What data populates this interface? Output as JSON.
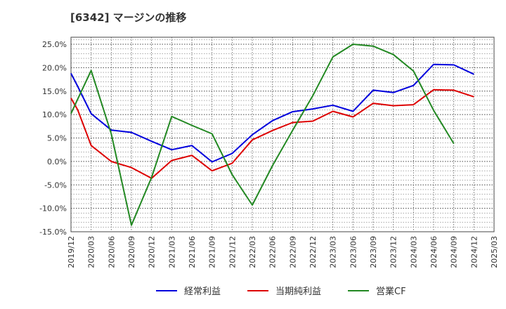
{
  "chart_data": {
    "type": "line",
    "title": "[6342]  マージンの推移",
    "xlabel": "",
    "ylabel": "",
    "ylim": [
      -15,
      26.5
    ],
    "yticks": [
      25,
      20,
      15,
      10,
      5,
      0,
      -5,
      -10,
      -15
    ],
    "ytick_labels": [
      "25.0%",
      "20.0%",
      "15.0%",
      "10.0%",
      "5.0%",
      "0.0%",
      "-5.0%",
      "-10.0%",
      "-15.0%"
    ],
    "x_range": [
      "2019-12",
      "2025-03"
    ],
    "xtick_labels": [
      "2019/12",
      "2020/03",
      "2020/06",
      "2020/09",
      "2020/12",
      "2021/03",
      "2021/06",
      "2021/09",
      "2021/12",
      "2022/03",
      "2022/06",
      "2022/09",
      "2022/12",
      "2023/03",
      "2023/06",
      "2023/09",
      "2023/12",
      "2024/03",
      "2024/06",
      "2024/09",
      "2024/12",
      "2025/03"
    ],
    "grid": true,
    "legend_position": "bottom",
    "x": [
      "2019/12",
      "2020/01",
      "2020/03",
      "2020/06",
      "2020/09",
      "2020/12",
      "2021/03",
      "2021/06",
      "2021/09",
      "2021/12",
      "2022/03",
      "2022/06",
      "2022/09",
      "2022/12",
      "2023/03",
      "2023/06",
      "2023/09",
      "2023/12",
      "2024/03",
      "2024/06",
      "2024/09",
      "2024/12"
    ],
    "series": [
      {
        "name": "経常利益",
        "color": "#0000dd",
        "values": [
          18.8,
          16.0,
          10.2,
          6.7,
          6.2,
          4.3,
          2.5,
          3.4,
          -0.1,
          1.7,
          5.7,
          8.7,
          10.6,
          11.2,
          12.0,
          10.7,
          15.2,
          14.7,
          16.2,
          20.7,
          20.6,
          18.6
        ]
      },
      {
        "name": "当期純利益",
        "color": "#dd0000",
        "values": [
          13.5,
          11.0,
          3.4,
          0.0,
          -1.3,
          -3.6,
          0.2,
          1.3,
          -2.0,
          -0.4,
          4.6,
          6.6,
          8.3,
          8.6,
          10.7,
          9.5,
          12.4,
          11.9,
          12.1,
          15.3,
          15.2,
          13.8
        ]
      },
      {
        "name": "営業CF",
        "color": "#228822",
        "values": [
          10.2,
          13.3,
          19.4,
          5.9,
          -13.6,
          -3.4,
          9.6,
          7.7,
          5.9,
          -2.8,
          -9.3,
          -0.9,
          6.6,
          14.0,
          22.3,
          25.0,
          24.6,
          22.8,
          19.3,
          10.9,
          3.8,
          null
        ]
      }
    ]
  }
}
